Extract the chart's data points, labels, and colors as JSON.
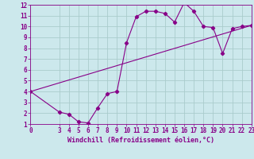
{
  "xlabel": "Windchill (Refroidissement éolien,°C)",
  "ylabel": "",
  "bg_color": "#cce8ec",
  "grid_color": "#aacccc",
  "line_color": "#880088",
  "xlim": [
    0,
    23
  ],
  "ylim": [
    1,
    12
  ],
  "xticks": [
    0,
    3,
    4,
    5,
    6,
    7,
    8,
    9,
    10,
    11,
    12,
    13,
    14,
    15,
    16,
    17,
    18,
    19,
    20,
    21,
    22,
    23
  ],
  "yticks": [
    1,
    2,
    3,
    4,
    5,
    6,
    7,
    8,
    9,
    10,
    11,
    12
  ],
  "curve_x": [
    0,
    3,
    4,
    5,
    6,
    7,
    8,
    9,
    10,
    11,
    12,
    13,
    14,
    15,
    16,
    17,
    18,
    19,
    20,
    21,
    22,
    23
  ],
  "curve_y": [
    4.0,
    2.1,
    1.9,
    1.2,
    1.1,
    2.5,
    3.8,
    4.0,
    8.5,
    10.9,
    11.4,
    11.4,
    11.2,
    10.4,
    12.2,
    11.4,
    10.0,
    9.9,
    7.5,
    9.8,
    10.0,
    10.1
  ],
  "line_x": [
    0,
    23
  ],
  "line_y": [
    4.0,
    10.1
  ],
  "marker": "D",
  "marker_size": 2.2,
  "line_width": 0.8,
  "tick_fontsize": 5.5,
  "xlabel_fontsize": 6.0
}
